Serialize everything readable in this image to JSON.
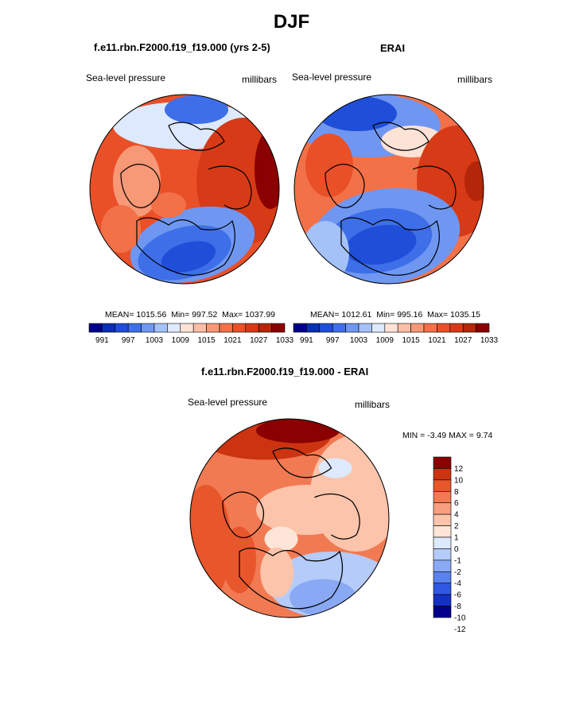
{
  "title": "DJF",
  "colors": {
    "abs_scale": [
      "#00008b",
      "#0a2fb0",
      "#1f4fd8",
      "#3e6fe9",
      "#6f97f2",
      "#a4c1f8",
      "#dde9fc",
      "#fde2d6",
      "#fbbfa6",
      "#f79877",
      "#f27148",
      "#e95028",
      "#d73a16",
      "#b32609",
      "#8b0000"
    ],
    "diff_scale": [
      "#00008b",
      "#1530c4",
      "#2f58e3",
      "#5a82ee",
      "#8aa9f4",
      "#b5cbf9",
      "#dde9fc",
      "#fde5d8",
      "#fbc4ab",
      "#f79f7f",
      "#f27a52",
      "#e8562b",
      "#cc3311",
      "#8b0000"
    ]
  },
  "chart_data": [
    {
      "type": "heatmap",
      "projection": "north-polar-stereographic",
      "title": "f.e11.rbn.F2000.f19_f19.000 (yrs 2-5)",
      "left_label": "Sea-level pressure",
      "right_label": "millibars",
      "stats": {
        "mean_label": "MEAN=",
        "mean": "1015.56",
        "min_label": "Min=",
        "min": "997.52",
        "max_label": "Max=",
        "max": "1037.99"
      },
      "colorbar": {
        "orientation": "horizontal",
        "levels": [
          988,
          991,
          994,
          997,
          1000,
          1003,
          1006,
          1009,
          1012,
          1015,
          1018,
          1021,
          1024,
          1027,
          1030,
          1033
        ],
        "tick_labels": [
          "991",
          "997",
          "1003",
          "1009",
          "1015",
          "1021",
          "1027",
          "1033"
        ]
      }
    },
    {
      "type": "heatmap",
      "projection": "north-polar-stereographic",
      "title": "ERAI",
      "left_label": "Sea-level pressure",
      "right_label": "millibars",
      "stats": {
        "mean_label": "MEAN=",
        "mean": "1012.61",
        "min_label": "Min=",
        "min": "995.16",
        "max_label": "Max=",
        "max": "1035.15"
      },
      "colorbar": {
        "orientation": "horizontal",
        "levels": [
          988,
          991,
          994,
          997,
          1000,
          1003,
          1006,
          1009,
          1012,
          1015,
          1018,
          1021,
          1024,
          1027,
          1030,
          1033
        ],
        "tick_labels": [
          "991",
          "997",
          "1003",
          "1009",
          "1015",
          "1021",
          "1027",
          "1033"
        ]
      }
    },
    {
      "type": "heatmap",
      "projection": "north-polar-stereographic",
      "title": "f.e11.rbn.F2000.f19_f19.000 - ERAI",
      "left_label": "Sea-level pressure",
      "right_label": "millibars",
      "stats": {
        "min_label": "MIN =",
        "min": "-3.49",
        "max_label": "MAX =",
        "max": "9.74"
      },
      "colorbar": {
        "orientation": "vertical",
        "tick_labels": [
          "12",
          "10",
          "8",
          "6",
          "4",
          "2",
          "1",
          "0",
          "-1",
          "-2",
          "-4",
          "-6",
          "-8",
          "-10",
          "-12"
        ]
      }
    }
  ]
}
